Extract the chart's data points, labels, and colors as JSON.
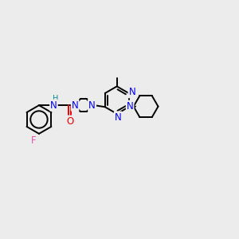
{
  "bg_color": "#ececec",
  "atom_colors": {
    "N": "#0000ee",
    "O": "#ee0000",
    "F": "#dd55aa",
    "C": "#000000",
    "H": "#009090"
  }
}
